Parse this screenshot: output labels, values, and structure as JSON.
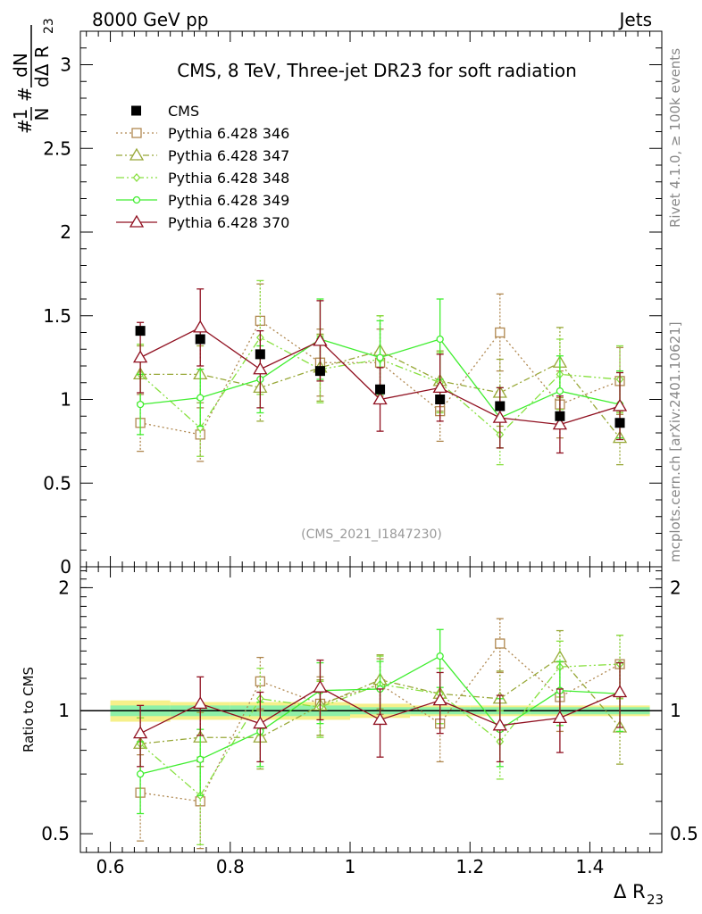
{
  "header": {
    "energy_label": "8000 GeV pp",
    "category_label": "Jets"
  },
  "side_labels": {
    "rivet": "Rivet 4.1.0, ≥ 100k events",
    "source": "mcplots.cern.ch [arXiv:2401.10621]"
  },
  "colors": {
    "cms": "#000000",
    "p346": "#b08850",
    "p347": "#98a838",
    "p348": "#88e040",
    "p349": "#40ee30",
    "p370": "#901020",
    "band_outer": "#f6f08a",
    "band_inner": "#8ef0a8"
  },
  "chart_data": {
    "type": "scatter",
    "title": "CMS, 8 TeV, Three-jet DR23 for soft radiation",
    "analysis_id": "(CMS_2021_I1847230)",
    "xlabel_main": "Δ R",
    "xlabel_sub": "23",
    "ylabel": "1/N dN/dΔ R23",
    "ylabel_parts": {
      "hash1": "#",
      "one": "1",
      "N": "N",
      "hash2": "#",
      "dN": "dN",
      "dDR": "dΔ R",
      "sub": "23"
    },
    "xlim": [
      0.55,
      1.52
    ],
    "ylim": [
      0,
      3.2
    ],
    "x_ticks": [
      0.6,
      0.8,
      1.0,
      1.2,
      1.4
    ],
    "x_tick_labels": [
      "0.6",
      "0.8",
      "1",
      "1.2",
      "1.4"
    ],
    "y_ticks": [
      0,
      0.5,
      1,
      1.5,
      2,
      2.5,
      3
    ],
    "y_tick_labels": [
      "0",
      "0.5",
      "1",
      "1.5",
      "2",
      "2.5",
      "3"
    ],
    "ratio": {
      "ylabel": "Ratio to CMS",
      "ylim": [
        0.45,
        2.25
      ],
      "y_ticks": [
        0.5,
        1,
        2
      ],
      "y_tick_labels": [
        "0.5",
        "1",
        "2"
      ],
      "band_outer": [
        0.06,
        0.05,
        0.05,
        0.05,
        0.04,
        0.03,
        0.03,
        0.03,
        0.03
      ],
      "band_inner": [
        0.03,
        0.03,
        0.03,
        0.03,
        0.02,
        0.02,
        0.02,
        0.02,
        0.02
      ]
    },
    "x": [
      0.65,
      0.75,
      0.85,
      0.95,
      1.05,
      1.15,
      1.25,
      1.35,
      1.45
    ],
    "cms": {
      "name": "CMS",
      "values": [
        1.41,
        1.36,
        1.27,
        1.17,
        1.06,
        1.0,
        0.96,
        0.9,
        0.86
      ]
    },
    "series": [
      {
        "name": "Pythia 6.428 346",
        "color_key": "p346",
        "dash": "2,3",
        "marker": "square",
        "values": [
          0.86,
          0.79,
          1.47,
          1.22,
          1.22,
          0.93,
          1.4,
          0.97,
          1.11
        ],
        "errors": [
          0.17,
          0.16,
          0.22,
          0.2,
          0.2,
          0.18,
          0.23,
          0.2,
          0.2
        ],
        "ratio": [
          0.63,
          0.6,
          1.18,
          1.04,
          1.16,
          0.93,
          1.46,
          1.08,
          1.3
        ],
        "ratio_err": [
          0.15,
          0.15,
          0.17,
          0.17,
          0.18,
          0.18,
          0.22,
          0.19,
          0.23
        ]
      },
      {
        "name": "Pythia 6.428 347",
        "color_key": "p347",
        "dash": "7,3,2,3",
        "marker": "triangle",
        "values": [
          1.15,
          1.15,
          1.07,
          1.19,
          1.29,
          1.11,
          1.04,
          1.22,
          0.77
        ],
        "errors": [
          0.17,
          0.17,
          0.2,
          0.2,
          0.21,
          0.18,
          0.2,
          0.21,
          0.16
        ],
        "ratio": [
          0.83,
          0.86,
          0.86,
          1.03,
          1.19,
          1.1,
          1.07,
          1.35,
          0.91
        ],
        "ratio_err": [
          0.13,
          0.13,
          0.14,
          0.16,
          0.18,
          0.17,
          0.18,
          0.22,
          0.17
        ]
      },
      {
        "name": "Pythia 6.428 348",
        "color_key": "p348",
        "dash": "9,3,2,3,2,3",
        "marker": "diamond",
        "values": [
          1.15,
          0.83,
          1.37,
          1.18,
          1.24,
          1.1,
          0.79,
          1.15,
          1.12
        ],
        "errors": [
          0.18,
          0.17,
          0.34,
          0.2,
          0.26,
          0.18,
          0.18,
          0.21,
          0.2
        ],
        "ratio": [
          0.83,
          0.62,
          1.07,
          1.02,
          1.16,
          1.1,
          0.84,
          1.28,
          1.3
        ],
        "ratio_err": [
          0.13,
          0.15,
          0.2,
          0.16,
          0.2,
          0.17,
          0.16,
          0.2,
          0.23
        ]
      },
      {
        "name": "Pythia 6.428 349",
        "color_key": "p349",
        "dash": "",
        "marker": "circle",
        "values": [
          0.97,
          1.01,
          1.12,
          1.36,
          1.25,
          1.36,
          0.89,
          1.05,
          0.97
        ],
        "errors": [
          0.18,
          0.17,
          0.2,
          0.24,
          0.22,
          0.24,
          0.18,
          0.21,
          0.2
        ],
        "ratio": [
          0.7,
          0.76,
          0.89,
          1.12,
          1.13,
          1.36,
          0.9,
          1.12,
          1.1
        ],
        "ratio_err": [
          0.14,
          0.14,
          0.16,
          0.19,
          0.19,
          0.22,
          0.17,
          0.2,
          0.21
        ]
      },
      {
        "name": "Pythia 6.428 370",
        "color_key": "p370",
        "dash": "",
        "marker": "triangle-open",
        "values": [
          1.25,
          1.43,
          1.18,
          1.35,
          1.0,
          1.07,
          0.89,
          0.85,
          0.96
        ],
        "errors": [
          0.21,
          0.23,
          0.23,
          0.24,
          0.19,
          0.2,
          0.18,
          0.17,
          0.2
        ],
        "ratio": [
          0.88,
          1.04,
          0.93,
          1.14,
          0.95,
          1.06,
          0.92,
          0.96,
          1.11
        ],
        "ratio_err": [
          0.15,
          0.17,
          0.18,
          0.19,
          0.18,
          0.18,
          0.17,
          0.17,
          0.2
        ]
      }
    ]
  }
}
